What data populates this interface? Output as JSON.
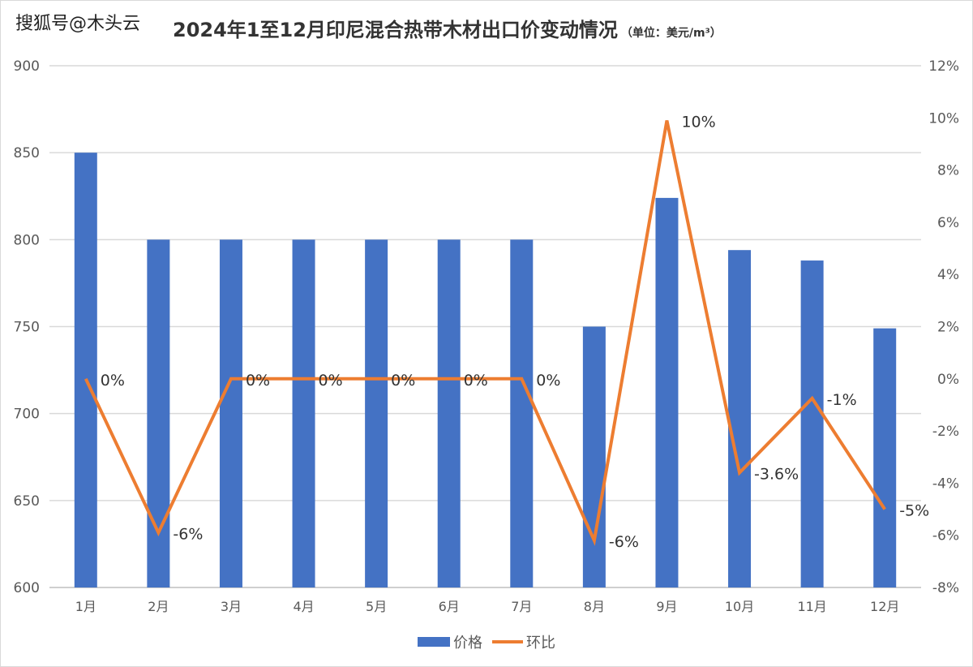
{
  "watermark": "搜狐号@木头云",
  "chart_data": {
    "type": "bar+line",
    "title": "2024年1至12月印尼混合热带木材出口价变动情况",
    "unit": "（单位：美元/m³）",
    "categories": [
      "1月",
      "2月",
      "3月",
      "4月",
      "5月",
      "6月",
      "7月",
      "8月",
      "9月",
      "10月",
      "11月",
      "12月"
    ],
    "series": [
      {
        "name": "价格",
        "type": "bar",
        "axis": "left",
        "color": "#4472C4",
        "values": [
          850,
          800,
          800,
          800,
          800,
          800,
          800,
          750,
          824,
          794,
          788,
          749
        ]
      },
      {
        "name": "环比",
        "type": "line",
        "axis": "right",
        "color": "#ED7D31",
        "values": [
          0,
          -5.9,
          0,
          0,
          0,
          0,
          0,
          -6.2,
          9.9,
          -3.6,
          -0.75,
          -5
        ],
        "labels": [
          "0%",
          "-6%",
          "0%",
          "0%",
          "0%",
          "0%",
          "0%",
          "-6%",
          "10%",
          "-3.6%",
          "-1%",
          "-5%"
        ]
      }
    ],
    "y_left": {
      "range": [
        600,
        900
      ],
      "ticks": [
        "600",
        "650",
        "700",
        "750",
        "800",
        "850",
        "900"
      ]
    },
    "y_right": {
      "range": [
        -8,
        12
      ],
      "ticks": [
        "-8%",
        "-6%",
        "-4%",
        "-2%",
        "0%",
        "2%",
        "4%",
        "6%",
        "8%",
        "10%",
        "12%"
      ]
    },
    "grid": true,
    "legend": "bottom"
  }
}
